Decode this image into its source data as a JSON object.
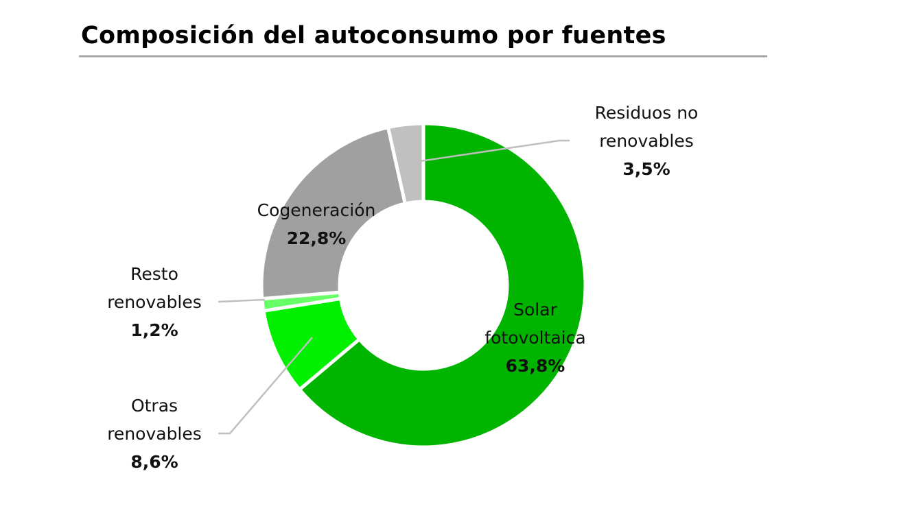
{
  "chart_data": {
    "type": "donut",
    "title": "Composición del autoconsumo por fuentes",
    "categories": [
      "Solar fotovoltaica",
      "Otras renovables",
      "Resto renovables",
      "Cogeneración",
      "Residuos no renovables"
    ],
    "values": [
      63.8,
      8.6,
      1.2,
      22.8,
      3.5
    ],
    "value_labels": [
      "63,8%",
      "8,6%",
      "1,2%",
      "22,8%",
      "3,5%"
    ],
    "colors": [
      "#00b400",
      "#00f000",
      "#66ff66",
      "#a0a0a0",
      "#c0c0c0"
    ]
  }
}
